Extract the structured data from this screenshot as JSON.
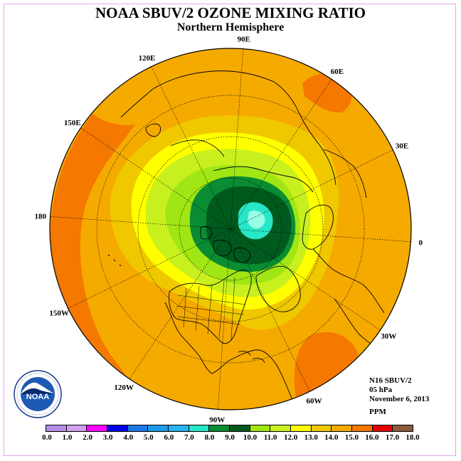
{
  "title": "NOAA SBUV/2 OZONE MIXING RATIO",
  "subtitle": "Northern Hemisphere",
  "map": {
    "projection": "north-polar-stereographic",
    "longitude_labels": [
      {
        "text": "90E",
        "lon": 90
      },
      {
        "text": "60E",
        "lon": 60
      },
      {
        "text": "30E",
        "lon": 30
      },
      {
        "text": "0",
        "lon": 0
      },
      {
        "text": "30W",
        "lon": -30
      },
      {
        "text": "60W",
        "lon": -60
      },
      {
        "text": "90W",
        "lon": -90
      },
      {
        "text": "120W",
        "lon": -120
      },
      {
        "text": "150W",
        "lon": -150
      },
      {
        "text": "180",
        "lon": 180
      },
      {
        "text": "150E",
        "lon": 150
      },
      {
        "text": "120E",
        "lon": 120
      }
    ]
  },
  "info": {
    "instrument": "N16 SBUV/2",
    "level": "05 hPa",
    "date": "November 6, 2013",
    "units": "PPM"
  },
  "legend": {
    "ticks": [
      "0.0",
      "1.0",
      "2.0",
      "3.0",
      "4.0",
      "5.0",
      "6.0",
      "7.0",
      "8.0",
      "9.0",
      "10.0",
      "11.0",
      "12.0",
      "13.0",
      "14.0",
      "15.0",
      "16.0",
      "17.0",
      "18.0"
    ],
    "colors": [
      "#b48ce6",
      "#d2a0f0",
      "#ff00ff",
      "#0000e6",
      "#1e78e6",
      "#1e9be6",
      "#28b4f0",
      "#28e6c8",
      "#0a8c32",
      "#005a1e",
      "#a0e614",
      "#c8f01e",
      "#ffff00",
      "#f0c800",
      "#f5aa00",
      "#f57800",
      "#e60000",
      "#8c5a3c"
    ]
  },
  "logo": {
    "text": "NOAA",
    "ring_text": "NATIONAL OCEANIC AND ATMOSPHERIC ADMINISTRATION · U.S. DEPARTMENT OF COMMERCE"
  }
}
